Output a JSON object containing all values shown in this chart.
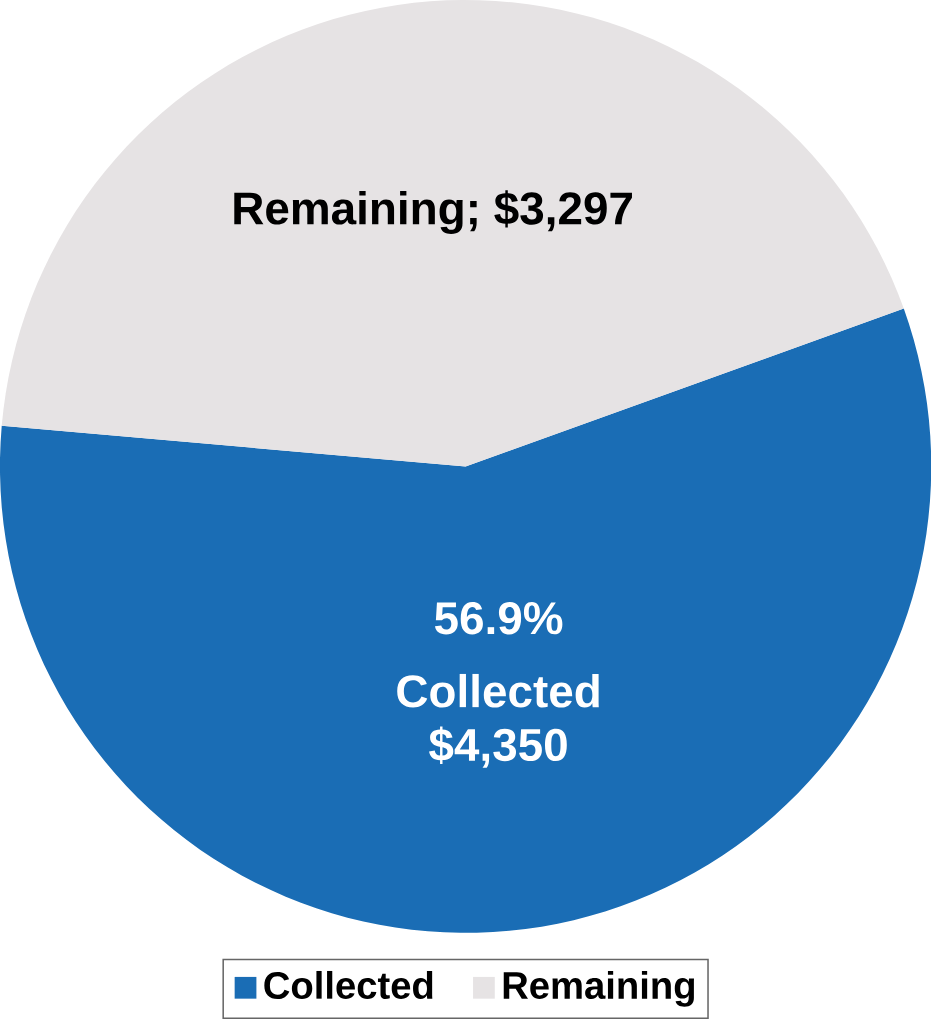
{
  "chart_data": {
    "type": "pie",
    "categories": [
      "Collected",
      "Remaining"
    ],
    "values": [
      4350,
      3297
    ],
    "colors": [
      "#1a6db5",
      "#e6e3e4"
    ],
    "value_labels": [
      "Collected $4,350",
      "Remaining; $3,297"
    ],
    "annotations": [
      "56.9%"
    ],
    "legend": "bottom"
  }
}
